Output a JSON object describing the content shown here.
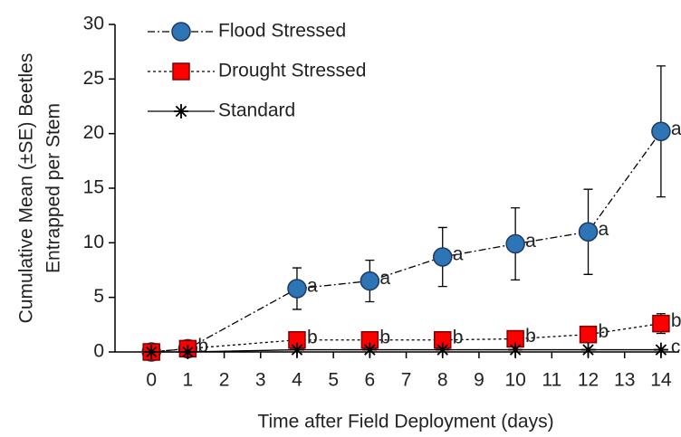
{
  "chart_data": {
    "type": "line",
    "x_label": "Time after Field Deployment (days)",
    "y_label": [
      "Cumulative Mean (±SE) Beetles",
      "Entrapped per Stem"
    ],
    "x": [
      0,
      1,
      4,
      6,
      8,
      10,
      12,
      14
    ],
    "series": [
      {
        "name": "Flood Stressed",
        "color": "#2e75b6",
        "marker": "circle",
        "dash": "dashdot",
        "values": [
          0,
          0.3,
          5.8,
          6.5,
          8.7,
          9.9,
          11,
          20.2
        ],
        "errors": [
          0,
          0,
          1.9,
          1.9,
          2.7,
          3.3,
          3.9,
          6.0
        ],
        "letters": [
          null,
          null,
          "a",
          "a",
          "a",
          "a",
          "a",
          "a"
        ]
      },
      {
        "name": "Drought Stressed",
        "color": "#ff0000",
        "marker": "square",
        "dash": "dotted",
        "values": [
          0,
          0.3,
          1.1,
          1.1,
          1.1,
          1.2,
          1.6,
          2.6
        ],
        "errors": [
          0,
          0,
          0.2,
          0.2,
          0.2,
          0.2,
          0.3,
          0.9
        ],
        "letters": [
          null,
          "b",
          "b",
          "b",
          "b",
          "b",
          "b",
          "b"
        ]
      },
      {
        "name": "Standard",
        "color": "#000000",
        "marker": "star",
        "dash": "solid",
        "values": [
          0,
          0,
          0.2,
          0.2,
          0.2,
          0.2,
          0.2,
          0.2
        ],
        "errors": [
          0,
          0,
          0,
          0,
          0,
          0,
          0,
          0
        ],
        "letters": [
          null,
          null,
          null,
          null,
          null,
          null,
          null,
          "c"
        ]
      }
    ],
    "xlim": [
      -1,
      14.5
    ],
    "ylim": [
      0,
      30
    ],
    "xticks": [
      0,
      1,
      2,
      3,
      4,
      5,
      6,
      7,
      8,
      9,
      10,
      11,
      12,
      13,
      14
    ],
    "yticks": [
      0,
      5,
      10,
      15,
      20,
      25,
      30
    ],
    "grid": false,
    "legend": "top-left"
  }
}
